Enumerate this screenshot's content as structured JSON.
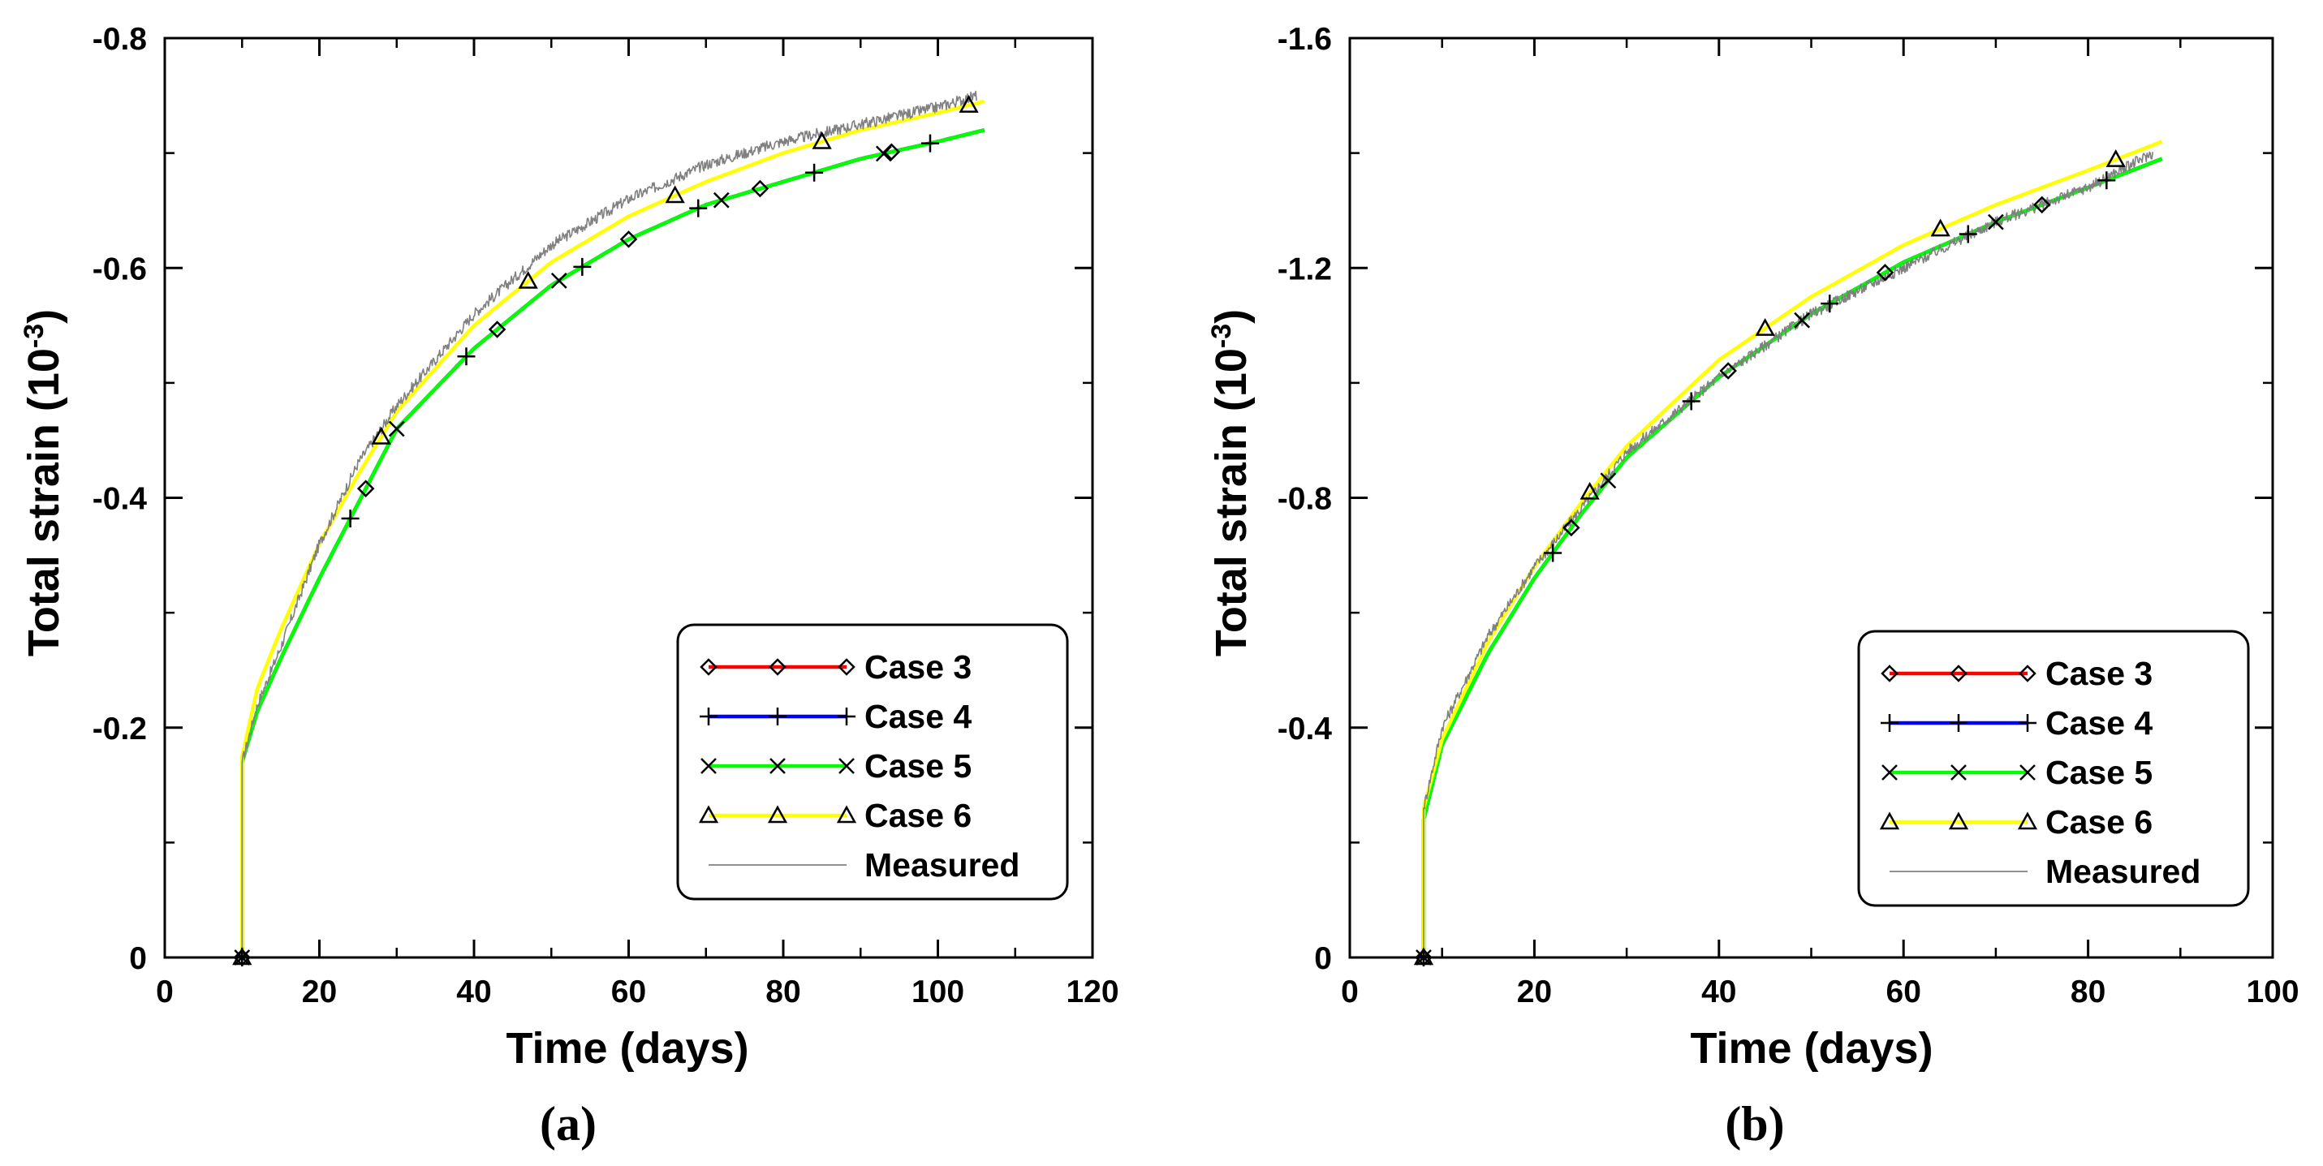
{
  "chart_data": [
    {
      "type": "line",
      "panel_label": "(a)",
      "xlabel": "Time (days)",
      "ylabel_main": "Total strain (10",
      "ylabel_exp": "-3",
      "ylabel_close": ")",
      "xlim": [
        0,
        120
      ],
      "ylim": [
        0,
        -0.8
      ],
      "xticks": [
        0,
        20,
        40,
        60,
        80,
        100,
        120
      ],
      "xtick_labels": [
        "0",
        "20",
        "40",
        "60",
        "80",
        "100",
        "120"
      ],
      "yticks": [
        0,
        -0.2,
        -0.4,
        -0.6,
        -0.8
      ],
      "ytick_labels": [
        "0",
        "-0.2",
        "-0.4",
        "-0.6",
        "-0.8"
      ],
      "legend_position": "bottom-right",
      "series": [
        {
          "name": "Case 3",
          "color": "#ff0000",
          "marker": "diamond",
          "x": [
            10,
            10,
            12,
            15,
            20,
            25,
            30,
            40,
            50,
            60,
            70,
            80,
            90,
            100,
            106
          ],
          "y": [
            0,
            -0.17,
            -0.215,
            -0.26,
            -0.33,
            -0.395,
            -0.46,
            -0.53,
            -0.585,
            -0.625,
            -0.655,
            -0.675,
            -0.695,
            -0.71,
            -0.72
          ],
          "marker_x": [
            10,
            26,
            43,
            60,
            77,
            94
          ]
        },
        {
          "name": "Case 4",
          "color": "#0000ff",
          "marker": "plus",
          "x": [
            10,
            10,
            12,
            15,
            20,
            25,
            30,
            40,
            50,
            60,
            70,
            80,
            90,
            100,
            106
          ],
          "y": [
            0,
            -0.17,
            -0.215,
            -0.26,
            -0.33,
            -0.395,
            -0.46,
            -0.53,
            -0.585,
            -0.625,
            -0.655,
            -0.675,
            -0.695,
            -0.71,
            -0.72
          ],
          "marker_x": [
            10,
            24,
            39,
            54,
            69,
            84,
            99
          ]
        },
        {
          "name": "Case 5",
          "color": "#00ff00",
          "marker": "x",
          "x": [
            10,
            10,
            12,
            15,
            20,
            25,
            30,
            40,
            50,
            60,
            70,
            80,
            90,
            100,
            106
          ],
          "y": [
            0,
            -0.17,
            -0.215,
            -0.26,
            -0.33,
            -0.395,
            -0.46,
            -0.53,
            -0.585,
            -0.625,
            -0.655,
            -0.675,
            -0.695,
            -0.71,
            -0.72
          ],
          "marker_x": [
            10,
            30,
            51,
            72,
            93
          ]
        },
        {
          "name": "Case 6",
          "color": "#ffff00",
          "marker": "triangle",
          "x": [
            10,
            10,
            12,
            15,
            20,
            25,
            30,
            40,
            50,
            60,
            70,
            80,
            90,
            100,
            106
          ],
          "y": [
            0,
            -0.175,
            -0.235,
            -0.285,
            -0.36,
            -0.42,
            -0.475,
            -0.55,
            -0.605,
            -0.645,
            -0.675,
            -0.7,
            -0.72,
            -0.735,
            -0.745
          ],
          "marker_x": [
            10,
            28,
            47,
            66,
            85,
            104
          ]
        },
        {
          "name": "Measured",
          "color": "#808080",
          "marker": "none",
          "noisy": true,
          "x": [
            10,
            10,
            12,
            15,
            20,
            25,
            30,
            40,
            50,
            60,
            70,
            80,
            90,
            100,
            105
          ],
          "y": [
            0,
            -0.17,
            -0.22,
            -0.27,
            -0.36,
            -0.43,
            -0.48,
            -0.56,
            -0.62,
            -0.66,
            -0.69,
            -0.71,
            -0.725,
            -0.74,
            -0.75
          ]
        }
      ]
    },
    {
      "type": "line",
      "panel_label": "(b)",
      "xlabel": "Time (days)",
      "ylabel_main": "Total strain (10",
      "ylabel_exp": "-3",
      "ylabel_close": ")",
      "xlim": [
        0,
        100
      ],
      "ylim": [
        0,
        -1.6
      ],
      "xticks": [
        0,
        20,
        40,
        60,
        80,
        100
      ],
      "xtick_labels": [
        "0",
        "20",
        "40",
        "60",
        "80",
        "100"
      ],
      "yticks": [
        0,
        -0.4,
        -0.8,
        -1.2,
        -1.6
      ],
      "ytick_labels": [
        "0",
        "-0.4",
        "-0.8",
        "-1.2",
        "-1.6"
      ],
      "legend_position": "bottom-right",
      "series": [
        {
          "name": "Case 3",
          "color": "#ff0000",
          "marker": "diamond",
          "x": [
            8,
            8,
            10,
            15,
            20,
            25,
            30,
            40,
            50,
            60,
            70,
            80,
            88
          ],
          "y": [
            0,
            -0.24,
            -0.37,
            -0.53,
            -0.66,
            -0.77,
            -0.87,
            -1.01,
            -1.12,
            -1.21,
            -1.28,
            -1.34,
            -1.39
          ],
          "marker_x": [
            8,
            24,
            41,
            58,
            75
          ]
        },
        {
          "name": "Case 4",
          "color": "#0000ff",
          "marker": "plus",
          "x": [
            8,
            8,
            10,
            15,
            20,
            25,
            30,
            40,
            50,
            60,
            70,
            80,
            88
          ],
          "y": [
            0,
            -0.24,
            -0.37,
            -0.53,
            -0.66,
            -0.77,
            -0.87,
            -1.01,
            -1.12,
            -1.21,
            -1.28,
            -1.34,
            -1.39
          ],
          "marker_x": [
            8,
            22,
            37,
            52,
            67,
            82
          ]
        },
        {
          "name": "Case 5",
          "color": "#00ff00",
          "marker": "x",
          "x": [
            8,
            8,
            10,
            15,
            20,
            25,
            30,
            40,
            50,
            60,
            70,
            80,
            88
          ],
          "y": [
            0,
            -0.24,
            -0.37,
            -0.53,
            -0.66,
            -0.77,
            -0.87,
            -1.01,
            -1.12,
            -1.21,
            -1.28,
            -1.34,
            -1.39
          ],
          "marker_x": [
            8,
            28,
            49,
            70
          ]
        },
        {
          "name": "Case 6",
          "color": "#ffff00",
          "marker": "triangle",
          "x": [
            8,
            8,
            10,
            15,
            20,
            25,
            30,
            40,
            50,
            60,
            70,
            80,
            88
          ],
          "y": [
            0,
            -0.26,
            -0.38,
            -0.55,
            -0.68,
            -0.79,
            -0.89,
            -1.04,
            -1.15,
            -1.24,
            -1.31,
            -1.37,
            -1.42
          ],
          "marker_x": [
            8,
            26,
            45,
            64,
            83
          ]
        },
        {
          "name": "Measured",
          "color": "#808080",
          "marker": "none",
          "noisy": true,
          "x": [
            8,
            8,
            10,
            15,
            20,
            25,
            30,
            40,
            50,
            60,
            70,
            80,
            87
          ],
          "y": [
            0,
            -0.26,
            -0.4,
            -0.56,
            -0.68,
            -0.78,
            -0.88,
            -1.01,
            -1.12,
            -1.2,
            -1.28,
            -1.34,
            -1.4
          ]
        }
      ]
    }
  ]
}
